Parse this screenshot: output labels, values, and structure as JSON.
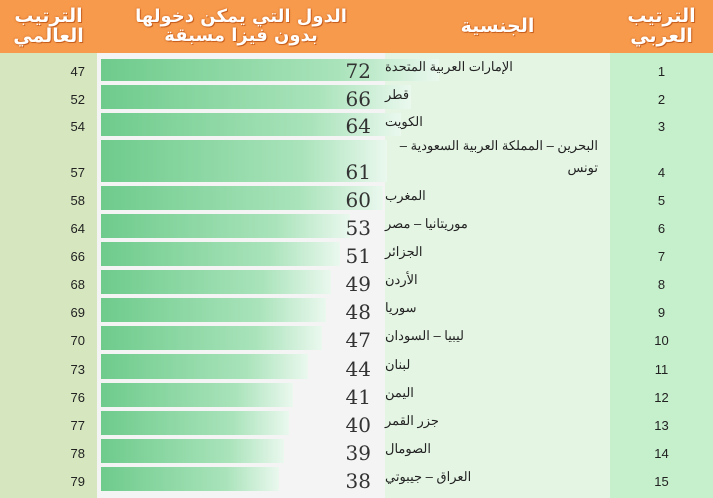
{
  "headers": {
    "world_rank": "الترتيب\nالعالمي",
    "visa_free": "الدول التي يمكن دخولها\nبدون فيزا مسبقة",
    "nationality": "الجنسية",
    "arab_rank": "الترتيب\nالعربي"
  },
  "colors": {
    "header": "#f79a4c",
    "world_col": "#d6e6bf",
    "nat_col": "#e4f5e4",
    "rank_col": "#c6efcc",
    "bar": "#6ecb8c"
  },
  "chart_data": {
    "type": "bar",
    "orientation": "horizontal",
    "xlim": [
      0,
      100
    ],
    "categories": [
      "الإمارات العربية المتحدة",
      "قطر",
      "الكويت",
      "البحرين – المملكة العربية السعودية – تونس",
      "المغرب",
      "موريتانيا – مصر",
      "الجزائر",
      "الأردن",
      "سوريا",
      "ليبيا – السودان",
      "لبنان",
      "اليمن",
      "جزر القمر",
      "الصومال",
      "العراق – جيبوتي"
    ],
    "rows": [
      {
        "rank": "1",
        "nationality": "الإمارات العربية المتحدة",
        "value": 72,
        "world_rank": "47"
      },
      {
        "rank": "2",
        "nationality": "قطر",
        "value": 66,
        "world_rank": "52"
      },
      {
        "rank": "3",
        "nationality": "الكويت",
        "value": 64,
        "world_rank": "54"
      },
      {
        "rank": "4",
        "nationality": "البحرين – المملكة العربية السعودية – تونس",
        "value": 61,
        "world_rank": "57"
      },
      {
        "rank": "5",
        "nationality": "المغرب",
        "value": 60,
        "world_rank": "58"
      },
      {
        "rank": "6",
        "nationality": "موريتانيا – مصر",
        "value": 53,
        "world_rank": "64"
      },
      {
        "rank": "7",
        "nationality": "الجزائر",
        "value": 51,
        "world_rank": "66"
      },
      {
        "rank": "8",
        "nationality": "الأردن",
        "value": 49,
        "world_rank": "68"
      },
      {
        "rank": "9",
        "nationality": "سوريا",
        "value": 48,
        "world_rank": "69"
      },
      {
        "rank": "10",
        "nationality": "ليبيا – السودان",
        "value": 47,
        "world_rank": "70"
      },
      {
        "rank": "11",
        "nationality": "لبنان",
        "value": 44,
        "world_rank": "73"
      },
      {
        "rank": "12",
        "nationality": "اليمن",
        "value": 41,
        "world_rank": "76"
      },
      {
        "rank": "13",
        "nationality": "جزر القمر",
        "value": 40,
        "world_rank": "77"
      },
      {
        "rank": "14",
        "nationality": "الصومال",
        "value": 39,
        "world_rank": "78"
      },
      {
        "rank": "15",
        "nationality": "العراق – جيبوتي",
        "value": 38,
        "world_rank": "79"
      }
    ]
  }
}
